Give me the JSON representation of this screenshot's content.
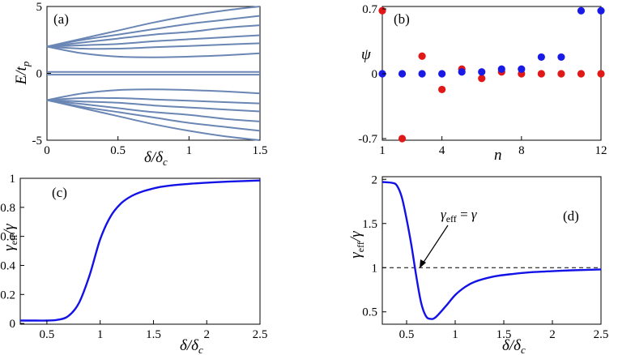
{
  "colors": {
    "line_a": "#6a86b4",
    "blue": "#1212e6",
    "red_pt": "#e01818",
    "blue_pt": "#1a1ae6"
  },
  "chart_data": [
    {
      "id": "a",
      "type": "line",
      "panel_label": "(a)",
      "xlabel": "δ/δ_c",
      "ylabel": "E/t_p",
      "xlim": [
        0,
        1.5
      ],
      "ylim": [
        -5,
        5
      ],
      "xticks": [
        "0",
        "0.5",
        "1",
        "1.5"
      ],
      "yticks": [
        "5",
        "0",
        "-5"
      ],
      "series": [
        {
          "x": [
            0,
            0.25,
            0.5,
            0.75,
            1.0,
            1.25,
            1.5
          ],
          "y": [
            2.0,
            2.6,
            3.2,
            3.8,
            4.3,
            4.7,
            5.0
          ]
        },
        {
          "x": [
            0,
            0.25,
            0.5,
            0.75,
            1.0,
            1.25,
            1.5
          ],
          "y": [
            2.0,
            2.5,
            2.9,
            3.3,
            3.7,
            4.0,
            4.3
          ]
        },
        {
          "x": [
            0,
            0.25,
            0.5,
            0.75,
            1.0,
            1.25,
            1.5
          ],
          "y": [
            2.0,
            2.3,
            2.6,
            2.9,
            3.1,
            3.4,
            3.6
          ]
        },
        {
          "x": [
            0,
            0.25,
            0.5,
            0.75,
            1.0,
            1.25,
            1.5
          ],
          "y": [
            2.0,
            2.1,
            2.2,
            2.4,
            2.55,
            2.7,
            2.85
          ]
        },
        {
          "x": [
            0,
            0.25,
            0.5,
            0.75,
            1.0,
            1.25,
            1.5
          ],
          "y": [
            2.0,
            1.85,
            1.85,
            1.95,
            2.05,
            2.15,
            2.25
          ]
        },
        {
          "x": [
            0,
            0.25,
            0.5,
            0.75,
            1.0,
            1.25,
            1.5
          ],
          "y": [
            2.0,
            1.5,
            1.25,
            1.2,
            1.25,
            1.35,
            1.5
          ]
        },
        {
          "x": [
            0,
            0.25,
            0.5,
            0.75,
            1.0,
            1.25,
            1.5
          ],
          "y": [
            0.1,
            0.1,
            0.1,
            0.1,
            0.1,
            0.1,
            0.1
          ]
        },
        {
          "x": [
            0,
            0.25,
            0.5,
            0.75,
            1.0,
            1.25,
            1.5
          ],
          "y": [
            -0.1,
            -0.1,
            -0.1,
            -0.1,
            -0.1,
            -0.1,
            -0.1
          ]
        },
        {
          "x": [
            0,
            0.25,
            0.5,
            0.75,
            1.0,
            1.25,
            1.5
          ],
          "y": [
            -2.0,
            -1.5,
            -1.25,
            -1.2,
            -1.25,
            -1.35,
            -1.5
          ]
        },
        {
          "x": [
            0,
            0.25,
            0.5,
            0.75,
            1.0,
            1.25,
            1.5
          ],
          "y": [
            -2.0,
            -1.85,
            -1.85,
            -1.95,
            -2.05,
            -2.15,
            -2.25
          ]
        },
        {
          "x": [
            0,
            0.25,
            0.5,
            0.75,
            1.0,
            1.25,
            1.5
          ],
          "y": [
            -2.0,
            -2.1,
            -2.2,
            -2.4,
            -2.55,
            -2.7,
            -2.85
          ]
        },
        {
          "x": [
            0,
            0.25,
            0.5,
            0.75,
            1.0,
            1.25,
            1.5
          ],
          "y": [
            -2.0,
            -2.3,
            -2.6,
            -2.9,
            -3.1,
            -3.4,
            -3.6
          ]
        },
        {
          "x": [
            0,
            0.25,
            0.5,
            0.75,
            1.0,
            1.25,
            1.5
          ],
          "y": [
            -2.0,
            -2.5,
            -2.9,
            -3.3,
            -3.7,
            -4.0,
            -4.3
          ]
        },
        {
          "x": [
            0,
            0.25,
            0.5,
            0.75,
            1.0,
            1.25,
            1.5
          ],
          "y": [
            -2.0,
            -2.6,
            -3.2,
            -3.8,
            -4.3,
            -4.7,
            -5.0
          ]
        }
      ]
    },
    {
      "id": "b",
      "type": "scatter",
      "panel_label": "(b)",
      "xlabel": "n",
      "ylabel": "ψ",
      "xlim": [
        1,
        12
      ],
      "ylim": [
        -0.7,
        0.7
      ],
      "xticks": [
        "1",
        "4",
        "8",
        "12"
      ],
      "yticks": [
        "0.7",
        "0",
        "-0.7"
      ],
      "series": [
        {
          "color": "red",
          "x": [
            1,
            2,
            3,
            4,
            5,
            6,
            7,
            8,
            9,
            10,
            11,
            12
          ],
          "y": [
            0.68,
            -0.7,
            0.19,
            -0.17,
            0.05,
            -0.05,
            0.02,
            0.0,
            0.0,
            0.0,
            0.0,
            0.0
          ]
        },
        {
          "color": "blue",
          "x": [
            1,
            2,
            3,
            4,
            5,
            6,
            7,
            8,
            9,
            10,
            11,
            12
          ],
          "y": [
            0.0,
            0.0,
            0.0,
            0.0,
            0.02,
            0.02,
            0.05,
            0.05,
            0.18,
            0.18,
            0.68,
            0.68
          ]
        }
      ]
    },
    {
      "id": "c",
      "type": "line",
      "panel_label": "(c)",
      "xlabel": "δ/δ_c",
      "ylabel": "γ_eff/γ",
      "xlim": [
        0.25,
        2.5
      ],
      "ylim": [
        0,
        1
      ],
      "xticks": [
        "0.5",
        "1",
        "1.5",
        "2",
        "2.5"
      ],
      "yticks": [
        "1",
        "0.8",
        "0.6",
        "0.4",
        "0.2",
        "0"
      ],
      "series": [
        {
          "x": [
            0.25,
            0.4,
            0.5,
            0.6,
            0.7,
            0.8,
            0.9,
            1.0,
            1.1,
            1.2,
            1.3,
            1.4,
            1.5,
            1.6,
            1.8,
            2.0,
            2.2,
            2.5
          ],
          "y": [
            0.02,
            0.02,
            0.02,
            0.025,
            0.05,
            0.14,
            0.33,
            0.58,
            0.74,
            0.83,
            0.88,
            0.91,
            0.93,
            0.945,
            0.96,
            0.97,
            0.977,
            0.985
          ]
        }
      ]
    },
    {
      "id": "d",
      "type": "line",
      "panel_label": "(d)",
      "xlabel": "δ/δ_c",
      "ylabel": "γ_eff/γ",
      "xlim": [
        0.25,
        2.5
      ],
      "ylim": [
        0.4,
        2.0
      ],
      "xticks": [
        "0.5",
        "1",
        "1.5",
        "2",
        "2.5"
      ],
      "yticks": [
        "2",
        "1.5",
        "1",
        "0.5"
      ],
      "reference_line": 1,
      "annotation": "γ_eff = γ",
      "series": [
        {
          "x": [
            0.25,
            0.35,
            0.4,
            0.45,
            0.5,
            0.55,
            0.6,
            0.65,
            0.7,
            0.75,
            0.8,
            0.9,
            1.0,
            1.1,
            1.2,
            1.4,
            1.6,
            1.8,
            2.0,
            2.2,
            2.5
          ],
          "y": [
            1.97,
            1.96,
            1.93,
            1.8,
            1.55,
            1.25,
            0.9,
            0.6,
            0.45,
            0.42,
            0.44,
            0.56,
            0.69,
            0.78,
            0.84,
            0.9,
            0.93,
            0.95,
            0.96,
            0.97,
            0.98
          ]
        }
      ]
    }
  ]
}
